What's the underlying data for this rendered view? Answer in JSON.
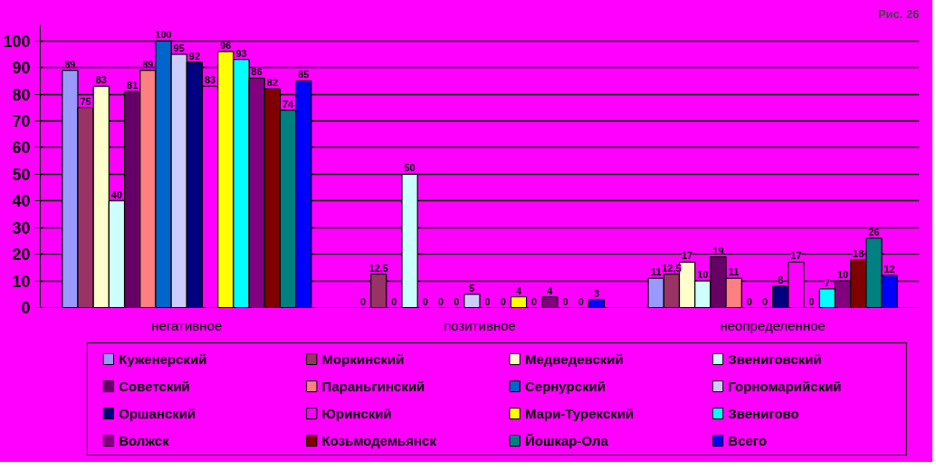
{
  "chart_data": {
    "type": "bar",
    "title": "Рис. 26",
    "categories": [
      "негативное",
      "позитивное",
      "неопределенное"
    ],
    "ylim": [
      0,
      106
    ],
    "yticks": [
      0,
      10,
      20,
      30,
      40,
      50,
      60,
      70,
      80,
      90,
      100
    ],
    "grid": "y",
    "legend": "bottom",
    "series": [
      {
        "name": "Куженерский",
        "color": "#9999ff",
        "values": [
          89,
          0,
          11
        ],
        "value_labels": [
          "89",
          "0",
          "11"
        ]
      },
      {
        "name": "Моркинский",
        "color": "#993366",
        "values": [
          75,
          12.5,
          12.5
        ],
        "value_labels": [
          "75",
          "12,5",
          "12,5"
        ]
      },
      {
        "name": "Медведевский",
        "color": "#ffffcc",
        "values": [
          83,
          0,
          17
        ],
        "value_labels": [
          "83",
          "0",
          "17"
        ]
      },
      {
        "name": "Звениговский",
        "color": "#ccffff",
        "values": [
          40,
          50,
          10
        ],
        "value_labels": [
          "40",
          "50",
          "10"
        ]
      },
      {
        "name": "Советский",
        "color": "#660066",
        "values": [
          81,
          0,
          19
        ],
        "value_labels": [
          "81",
          "0",
          "19"
        ]
      },
      {
        "name": "Параньгинский",
        "color": "#ff8080",
        "values": [
          89,
          0,
          11
        ],
        "value_labels": [
          "89",
          "0",
          "11"
        ]
      },
      {
        "name": "Сернурский",
        "color": "#0066cc",
        "values": [
          100,
          0,
          0
        ],
        "value_labels": [
          "100",
          "0",
          "0"
        ]
      },
      {
        "name": "Горномарийский",
        "color": "#ccccff",
        "values": [
          95,
          5,
          0
        ],
        "value_labels": [
          "95",
          "5",
          "0"
        ]
      },
      {
        "name": "Оршанский",
        "color": "#000080",
        "values": [
          92,
          0,
          8
        ],
        "value_labels": [
          "92",
          "0",
          "8"
        ]
      },
      {
        "name": "Юринский",
        "color": "#ff00ff",
        "values": [
          83,
          0,
          17
        ],
        "value_labels": [
          "83",
          "0",
          "17"
        ]
      },
      {
        "name": "Мари-Турекский",
        "color": "#ffff00",
        "values": [
          96,
          4,
          0
        ],
        "value_labels": [
          "96",
          "4",
          "0"
        ]
      },
      {
        "name": "Звенигово",
        "color": "#00ffff",
        "values": [
          93,
          0,
          7
        ],
        "value_labels": [
          "93",
          "0",
          "7"
        ]
      },
      {
        "name": "Волжск",
        "color": "#800080",
        "values": [
          86,
          4,
          10
        ],
        "value_labels": [
          "86",
          "4",
          "10"
        ]
      },
      {
        "name": "Козьмодемьянск",
        "color": "#800000",
        "values": [
          82,
          0,
          18
        ],
        "value_labels": [
          "82",
          "0",
          "18"
        ]
      },
      {
        "name": "Йошкар-Ола",
        "color": "#008080",
        "values": [
          74,
          0,
          26
        ],
        "value_labels": [
          "74",
          "0",
          "26"
        ]
      },
      {
        "name": "Всего",
        "color": "#0000ff",
        "values": [
          85,
          3,
          12
        ],
        "value_labels": [
          "85",
          "3",
          "12"
        ]
      }
    ]
  }
}
